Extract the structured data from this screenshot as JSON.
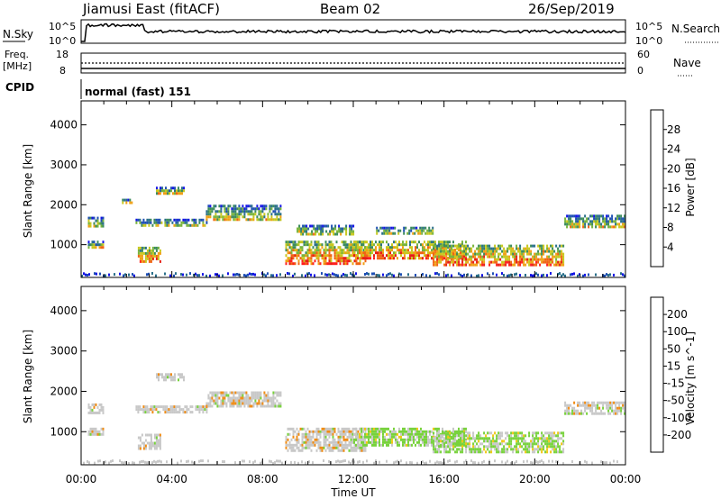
{
  "header": {
    "station": "Jiamusi East (fitACF)",
    "beam": "Beam 02",
    "date": "26/Sep/2019"
  },
  "panels": {
    "nsky_label": "N.Sky",
    "nsearch_label": "N.Search",
    "nsky_ticks": [
      "10^5",
      "10^0"
    ],
    "nsearch_ticks": [
      "10^5",
      "10^0"
    ],
    "freq_label_1": "Freq.",
    "freq_label_2": "[MHz]",
    "freq_ticks": [
      "18",
      "8"
    ],
    "nave_label": "Nave",
    "nave_ticks": [
      "60",
      "0"
    ],
    "cpid_label": "CPID",
    "cpid_text": "normal (fast) 151"
  },
  "chart_data": [
    {
      "type": "heatmap",
      "title": "",
      "xlabel": "",
      "ylabel": "Slant Range [km]",
      "x_ticks": [
        "00:00",
        "04:00",
        "08:00",
        "12:00",
        "16:00",
        "20:00",
        "00:00"
      ],
      "y_ticks": [
        1000,
        2000,
        3000,
        4000
      ],
      "xlim_hours": [
        0,
        24
      ],
      "ylim_km": [
        180,
        4600
      ],
      "colorbar": {
        "label": "Power [dB]",
        "ticks": [
          "4",
          "8",
          "12",
          "16",
          "20",
          "24",
          "28"
        ],
        "min": 0,
        "max": 32,
        "colors": [
          "#1414e6",
          "#1e4fb4",
          "#2a6f8a",
          "#3c8c5c",
          "#78b43c",
          "#c8c81e",
          "#f0a014",
          "#f06414",
          "#e61e14",
          "#ff1e1e"
        ]
      },
      "echo_regions": [
        {
          "t0": 0.3,
          "t1": 1.0,
          "r0": 1450,
          "r1": 1700
        },
        {
          "t0": 0.3,
          "t1": 1.0,
          "r0": 950,
          "r1": 1100
        },
        {
          "t0": 2.5,
          "t1": 3.5,
          "r0": 550,
          "r1": 950
        },
        {
          "t0": 2.4,
          "t1": 5.5,
          "r0": 1450,
          "r1": 1650
        },
        {
          "t0": 3.3,
          "t1": 4.5,
          "r0": 2300,
          "r1": 2450
        },
        {
          "t0": 1.8,
          "t1": 2.2,
          "r0": 2050,
          "r1": 2150
        },
        {
          "t0": 5.5,
          "t1": 8.8,
          "r0": 1600,
          "r1": 2000
        },
        {
          "t0": 9.0,
          "t1": 12.5,
          "r0": 550,
          "r1": 1100
        },
        {
          "t0": 9.5,
          "t1": 12.0,
          "r0": 1250,
          "r1": 1500
        },
        {
          "t0": 12.0,
          "t1": 17.0,
          "r0": 650,
          "r1": 1100
        },
        {
          "t0": 13.0,
          "t1": 15.5,
          "r0": 1250,
          "r1": 1450
        },
        {
          "t0": 15.5,
          "t1": 21.3,
          "r0": 500,
          "r1": 1000
        },
        {
          "t0": 21.3,
          "t1": 24.0,
          "r0": 1450,
          "r1": 1750
        }
      ]
    },
    {
      "type": "heatmap",
      "title": "",
      "xlabel": "Time UT",
      "ylabel": "Slant Range [km]",
      "x_ticks": [
        "00:00",
        "04:00",
        "08:00",
        "12:00",
        "16:00",
        "20:00",
        "00:00"
      ],
      "y_ticks": [
        1000,
        2000,
        3000,
        4000
      ],
      "xlim_hours": [
        0,
        24
      ],
      "ylim_km": [
        180,
        4600
      ],
      "colorbar": {
        "label": "Velocity [m s^-1]",
        "ticks": [
          "200",
          "100",
          "50",
          "15",
          "-15",
          "-50",
          "-100",
          "-200"
        ],
        "colors": [
          "#1e3ca0",
          "#2864b4",
          "#32a050",
          "#78d23c",
          "#c8c8c8",
          "#f0c814",
          "#f08c14",
          "#f05014",
          "#e61414"
        ]
      },
      "echo_regions": [
        {
          "t0": 0.3,
          "t1": 1.0,
          "r0": 1450,
          "r1": 1700
        },
        {
          "t0": 0.3,
          "t1": 1.0,
          "r0": 950,
          "r1": 1100
        },
        {
          "t0": 2.5,
          "t1": 3.5,
          "r0": 550,
          "r1": 950
        },
        {
          "t0": 2.4,
          "t1": 5.5,
          "r0": 1450,
          "r1": 1650
        },
        {
          "t0": 3.3,
          "t1": 4.5,
          "r0": 2300,
          "r1": 2450
        },
        {
          "t0": 5.5,
          "t1": 8.8,
          "r0": 1600,
          "r1": 2000
        },
        {
          "t0": 9.0,
          "t1": 12.5,
          "r0": 550,
          "r1": 1100
        },
        {
          "t0": 12.0,
          "t1": 17.0,
          "r0": 650,
          "r1": 1100
        },
        {
          "t0": 15.5,
          "t1": 21.3,
          "r0": 500,
          "r1": 1000
        },
        {
          "t0": 21.3,
          "t1": 24.0,
          "r0": 1450,
          "r1": 1750
        }
      ]
    }
  ]
}
